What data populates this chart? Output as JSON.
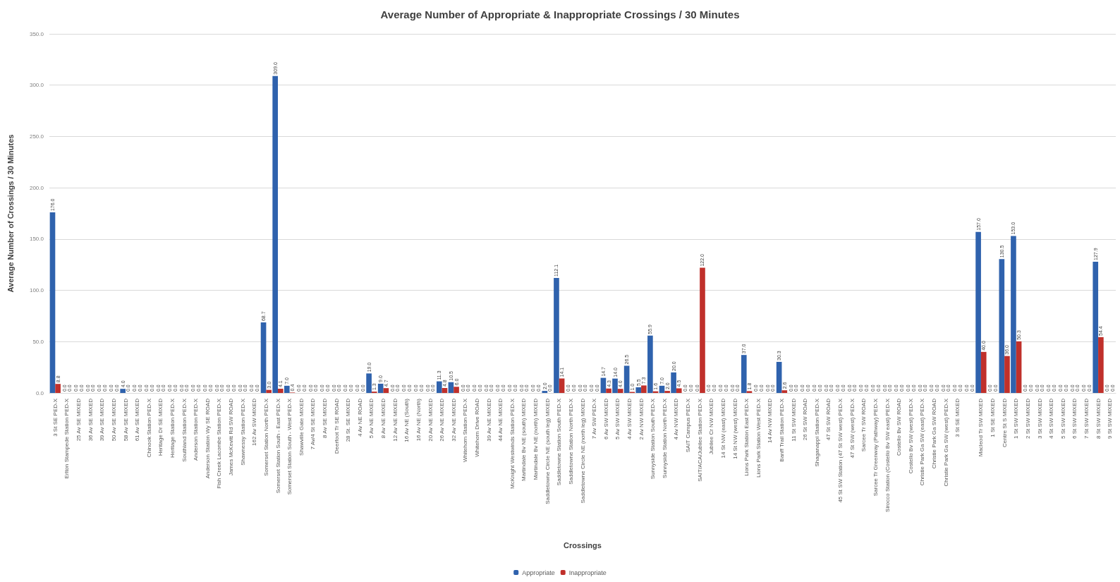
{
  "chart_data": {
    "type": "bar",
    "title": "Average Number of Appropriate & Inappropriate Crossings / 30 Minutes",
    "xlabel": "Crossings",
    "ylabel": "Average Number of Crossings / 30 Minutes",
    "categories": [
      "3 St SE PED-X",
      "Erlton Stampede Station PED-X",
      "25 Av SE MIXED",
      "36 Av SE MIXED",
      "39 Av SE MIXED",
      "50 Av SE MIXED",
      "58 Av SE MIXED",
      "61 Av SE MIXED",
      "Chinook Station PED-X",
      "Heritage Dr SE MIXED",
      "Heritage Station PED-X",
      "Southland Station PED-X",
      "Anderson Station PED-X",
      "Anderson Station Wy SE ROAD",
      "Fish Creek Lacombe Station PED-X",
      "James McKevitt Rd SW ROAD",
      "Shawnessy Station PED-X",
      "162 Av SW MIXED",
      "Somerset Station North PED-X",
      "Somerset Station South - East PED-X",
      "Somerset Station South - West PED-X",
      "Shawville Gate MIXED",
      "7 Av/4 St SE MIXED",
      "8 Av SE MIXED",
      "Deerfoot Tr SE ROAD",
      "28 St. SE MIXED",
      "4 Av NE ROAD",
      "5 Av NE MIXED",
      "8 Av NE MIXED",
      "12 Av NE MIXED",
      "16 Av NE (South)",
      "16 Av NE (North)",
      "20 Av NE MIXED",
      "26 Av NE MIXED",
      "32 Av NE MIXED",
      "Whitehorn Station PED-X",
      "Whitehorn Drive ROAD",
      "39 Av NE MIXED",
      "44 Av NE MIXED",
      "McKnight Westwinds Station PED-X",
      "Martindale Bv NE (south) MIXED",
      "Martindale Bv NE (north) MIXED",
      "Saddletowne Circle NE (south leg) MIXED",
      "Saddletowne Station South PED-X",
      "Saddletowne Station North PED-X",
      "Saddletowne Circle NE (north leg) MIXED",
      "7 Av SW PED-X",
      "6 Av SW MIXED",
      "5 Av SW MIXED",
      "4 Av SW MIXED",
      "2 Av NW MIXED",
      "Sunnyside Station South PED-X",
      "Sunnyside Station North PED-X",
      "4 Av NW MIXED",
      "SAIT Campus PED-X",
      "SAIT/ACA/Jubilee Station PED-X",
      "Jubilee Cr NW MIXED",
      "14 St NW (east) MIXED",
      "14 St NW (west) MIXED",
      "Lions Park Station East PED-X",
      "Lions Park Station West PED-X",
      "14 Av NW MIXED",
      "Banff Trail Station PED-X",
      "11 St SW MIXED",
      "26 St SW ROAD",
      "Shaganappi Station PED-X",
      "47 St SW ROAD",
      "45 St SW Station (47 St SW west) PED-X",
      "47 St SW (west) PED-X",
      "Sarcee Tr SW ROAD",
      "Sarcee Tr Greenway (Pathway) PED-X",
      "Sirocco Station (Costello Bv SW east) PED-X",
      "Costello Bv SW ROAD",
      "Costello Bv SW (west) PED-X",
      "Christie Park Ga SW (east) PED-X",
      "Christie Park Ga SW ROAD",
      "Christie Park Ga SW (west) PED-X",
      "3 St SE MIXED",
      null,
      "Macleod Tr SW MIXED",
      "1 St SE MIXED",
      "Centre St S MIXED",
      "1 St SW MIXED",
      "2 St SW MIXED",
      "3 St SW MIXED",
      "4 St SW MIXED",
      "5 St SW MIXED",
      "6 St SW MIXED",
      "7 St SW MIXED",
      "8 St SW MIXED",
      "9 St SW MIXED"
    ],
    "series": [
      {
        "name": "Appropriate",
        "color": "#2f62ad",
        "value_labels": [
          "176.0",
          "0.0",
          "0.0",
          "0.0",
          "0.0",
          "0.0",
          "4.0",
          "0.0",
          "0.0",
          "0.0",
          "0.0",
          "0.0",
          "0.0",
          "0.0",
          "0.0",
          "0.0",
          "0.0",
          "0.0",
          "68.7",
          "309.0",
          "7.0",
          "0.0",
          "0.0",
          "0.0",
          "0.0",
          "0.0",
          "0.0",
          "19.0",
          "9.0",
          "0.0",
          "0.0",
          "0.0",
          "0.0",
          "11.3",
          "10.5",
          "0.0",
          "0.0",
          "0.0",
          "0.0",
          "0.0",
          "0.0",
          "0.0",
          "2.0",
          "112.1",
          "0.0",
          "0.0",
          "0.0",
          "14.7",
          "14.0",
          "26.5",
          "5.5",
          "55.9",
          "7.0",
          "20.0",
          "0.0",
          "0.0",
          "0.0",
          "0.0",
          "0.0",
          "37.0",
          "0.0",
          "0.0",
          "30.3",
          "0.0",
          "0.0",
          "0.0",
          "0.0",
          "0.0",
          "0.0",
          "0.0",
          "0.0",
          "0.0",
          "0.0",
          "0.0",
          "0.0",
          "0.0",
          "0.0",
          "0.0",
          "0.0",
          "157.0",
          "0.0",
          "130.5",
          "153.0",
          "0.0",
          "0.0",
          "0.0",
          "0.0",
          "0.0",
          "0.0",
          "127.9",
          "0.0"
        ],
        "values": [
          176.0,
          0,
          0,
          0,
          0,
          0,
          4.0,
          0,
          0,
          0,
          0,
          0,
          0,
          0,
          0,
          0,
          0,
          0,
          68.7,
          309.0,
          7.0,
          0,
          0,
          0,
          0,
          0,
          0,
          19.0,
          9.0,
          0,
          0,
          0,
          0,
          11.3,
          10.5,
          0,
          0,
          0,
          0,
          0,
          0,
          0,
          2.0,
          112.1,
          0,
          0,
          0,
          14.7,
          14.0,
          26.5,
          5.5,
          55.9,
          7.0,
          20.0,
          0,
          0,
          0,
          0,
          0,
          37.0,
          0,
          0,
          30.3,
          0,
          0,
          0,
          0,
          0,
          0,
          0,
          0,
          0,
          0,
          0,
          0,
          0,
          0,
          0,
          0,
          157.0,
          0,
          130.5,
          153.0,
          0,
          0,
          0,
          0,
          0,
          0,
          127.9,
          0
        ]
      },
      {
        "name": "Inappropriate",
        "color": "#c0302b",
        "value_labels": [
          "8.8",
          "0.0",
          "0.0",
          "0.0",
          "0.0",
          "0.0",
          "0.0",
          "0.0",
          "0.0",
          "0.0",
          "0.0",
          "0.0",
          "0.0",
          "0.0",
          "0.0",
          "0.0",
          "0.0",
          "0.0",
          "3.0",
          "4.1",
          "0.4",
          "0.0",
          "0.0",
          "0.0",
          "0.0",
          "0.0",
          "0.0",
          "1.3",
          "4.7",
          "0.0",
          "0.0",
          "0.0",
          "0.0",
          "4.8",
          "6.0",
          "0.0",
          "0.0",
          "0.0",
          "0.0",
          "0.0",
          "0.0",
          "0.0",
          "0.0",
          "14.1",
          "0.0",
          "0.0",
          "0.0",
          "4.3",
          "4.0",
          "1.0",
          "7.3",
          "1.6",
          "2.0",
          "4.5",
          "0.0",
          "122.0",
          "0.0",
          "0.0",
          "0.0",
          "1.8",
          "0.0",
          "0.0",
          "2.6",
          "0.0",
          "0.0",
          "0.0",
          "0.0",
          "0.0",
          "0.0",
          "0.0",
          "0.0",
          "0.0",
          "0.0",
          "0.0",
          "0.0",
          "0.0",
          "0.0",
          "0.0",
          "0.0",
          "40.0",
          "0.0",
          "36.0",
          "50.3",
          "0.0",
          "0.0",
          "0.0",
          "0.0",
          "0.0",
          "0.0",
          "54.4",
          "0.0"
        ],
        "values": [
          8.8,
          0,
          0,
          0,
          0,
          0,
          0,
          0,
          0,
          0,
          0,
          0,
          0,
          0,
          0,
          0,
          0,
          0,
          3.0,
          4.1,
          0.4,
          0,
          0,
          0,
          0,
          0,
          0,
          1.3,
          4.7,
          0,
          0,
          0,
          0,
          4.8,
          6.0,
          0,
          0,
          0,
          0,
          0,
          0,
          0,
          0,
          14.1,
          0,
          0,
          0,
          4.3,
          4.0,
          1.0,
          7.3,
          1.6,
          2.0,
          4.5,
          0,
          122.0,
          0,
          0,
          0,
          1.8,
          0,
          0,
          2.6,
          0,
          0,
          0,
          0,
          0,
          0,
          0,
          0,
          0,
          0,
          0,
          0,
          0,
          0,
          0,
          0,
          40.0,
          0,
          36.0,
          50.3,
          0,
          0,
          0,
          0,
          0,
          0,
          54.4,
          0
        ]
      }
    ],
    "ylim": [
      0,
      350
    ],
    "yticks": [
      {
        "value": 0,
        "label": "0.0"
      },
      {
        "value": 50,
        "label": "50.0"
      },
      {
        "value": 100,
        "label": "100.0"
      },
      {
        "value": 150,
        "label": "150.0"
      },
      {
        "value": 200,
        "label": "200.0"
      },
      {
        "value": 250,
        "label": "250.0"
      },
      {
        "value": 300,
        "label": "300.0"
      },
      {
        "value": 350,
        "label": "350.0"
      }
    ],
    "grid": "y",
    "legend": "bottom"
  }
}
